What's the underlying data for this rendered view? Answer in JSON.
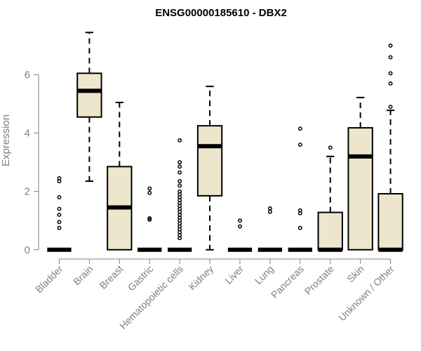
{
  "chart_data": {
    "type": "box",
    "title": "ENSG00000185610 - DBX2",
    "xlabel": "",
    "ylabel": "Expression",
    "ylim": [
      -0.15,
      7.6
    ],
    "yticks": [
      0,
      2,
      4,
      6
    ],
    "grid": false,
    "box_color": "#ede6cd",
    "categories": [
      "Bladder",
      "Brain",
      "Breast",
      "Gastric",
      "Hematopoietic cells",
      "Kidney",
      "Liver",
      "Lung",
      "Pancreas",
      "Prostate",
      "Skin",
      "Unknown / Other"
    ],
    "boxes": [
      {
        "category": "Bladder",
        "whisker_low": 0,
        "q1": 0,
        "median": 0,
        "q3": 0,
        "whisker_high": 0,
        "outliers": [
          0.75,
          0.95,
          1.2,
          1.4,
          1.8,
          2.35,
          2.45
        ]
      },
      {
        "category": "Brain",
        "whisker_low": 2.35,
        "q1": 4.55,
        "median": 5.45,
        "q3": 6.05,
        "whisker_high": 7.45,
        "outliers": []
      },
      {
        "category": "Breast",
        "whisker_low": 0,
        "q1": 0,
        "median": 1.45,
        "q3": 2.85,
        "whisker_high": 5.05,
        "outliers": []
      },
      {
        "category": "Gastric",
        "whisker_low": 0,
        "q1": 0,
        "median": 0,
        "q3": 0,
        "whisker_high": 0,
        "outliers": [
          1.03,
          1.08,
          1.95,
          2.1
        ]
      },
      {
        "category": "Hematopoietic cells",
        "whisker_low": 0,
        "q1": 0,
        "median": 0,
        "q3": 0,
        "whisker_high": 0,
        "outliers": [
          0.4,
          0.5,
          0.6,
          0.7,
          0.8,
          0.9,
          1.0,
          1.1,
          1.2,
          1.3,
          1.4,
          1.5,
          1.6,
          1.7,
          1.8,
          1.9,
          2.0,
          2.2,
          2.35,
          2.65,
          2.85,
          3.0,
          3.75
        ]
      },
      {
        "category": "Kidney",
        "whisker_low": 0,
        "q1": 1.85,
        "median": 3.55,
        "q3": 4.25,
        "whisker_high": 5.6,
        "outliers": []
      },
      {
        "category": "Liver",
        "whisker_low": 0,
        "q1": 0,
        "median": 0,
        "q3": 0,
        "whisker_high": 0,
        "outliers": [
          0.8,
          1.0
        ]
      },
      {
        "category": "Lung",
        "whisker_low": 0,
        "q1": 0,
        "median": 0,
        "q3": 0,
        "whisker_high": 0,
        "outliers": [
          1.3,
          1.42
        ]
      },
      {
        "category": "Pancreas",
        "whisker_low": 0,
        "q1": 0,
        "median": 0,
        "q3": 0,
        "whisker_high": 0,
        "outliers": [
          0.75,
          1.25,
          1.35,
          3.6,
          4.15
        ]
      },
      {
        "category": "Prostate",
        "whisker_low": 0,
        "q1": 0,
        "median": 0,
        "q3": 1.28,
        "whisker_high": 3.2,
        "outliers": [
          3.5
        ]
      },
      {
        "category": "Skin",
        "whisker_low": 0,
        "q1": 0,
        "median": 3.2,
        "q3": 4.18,
        "whisker_high": 5.22,
        "outliers": []
      },
      {
        "category": "Unknown / Other",
        "whisker_low": 0,
        "q1": 0,
        "median": 0,
        "q3": 1.92,
        "whisker_high": 4.78,
        "outliers": [
          4.9,
          5.7,
          6.05,
          6.6,
          7.0
        ]
      }
    ]
  }
}
